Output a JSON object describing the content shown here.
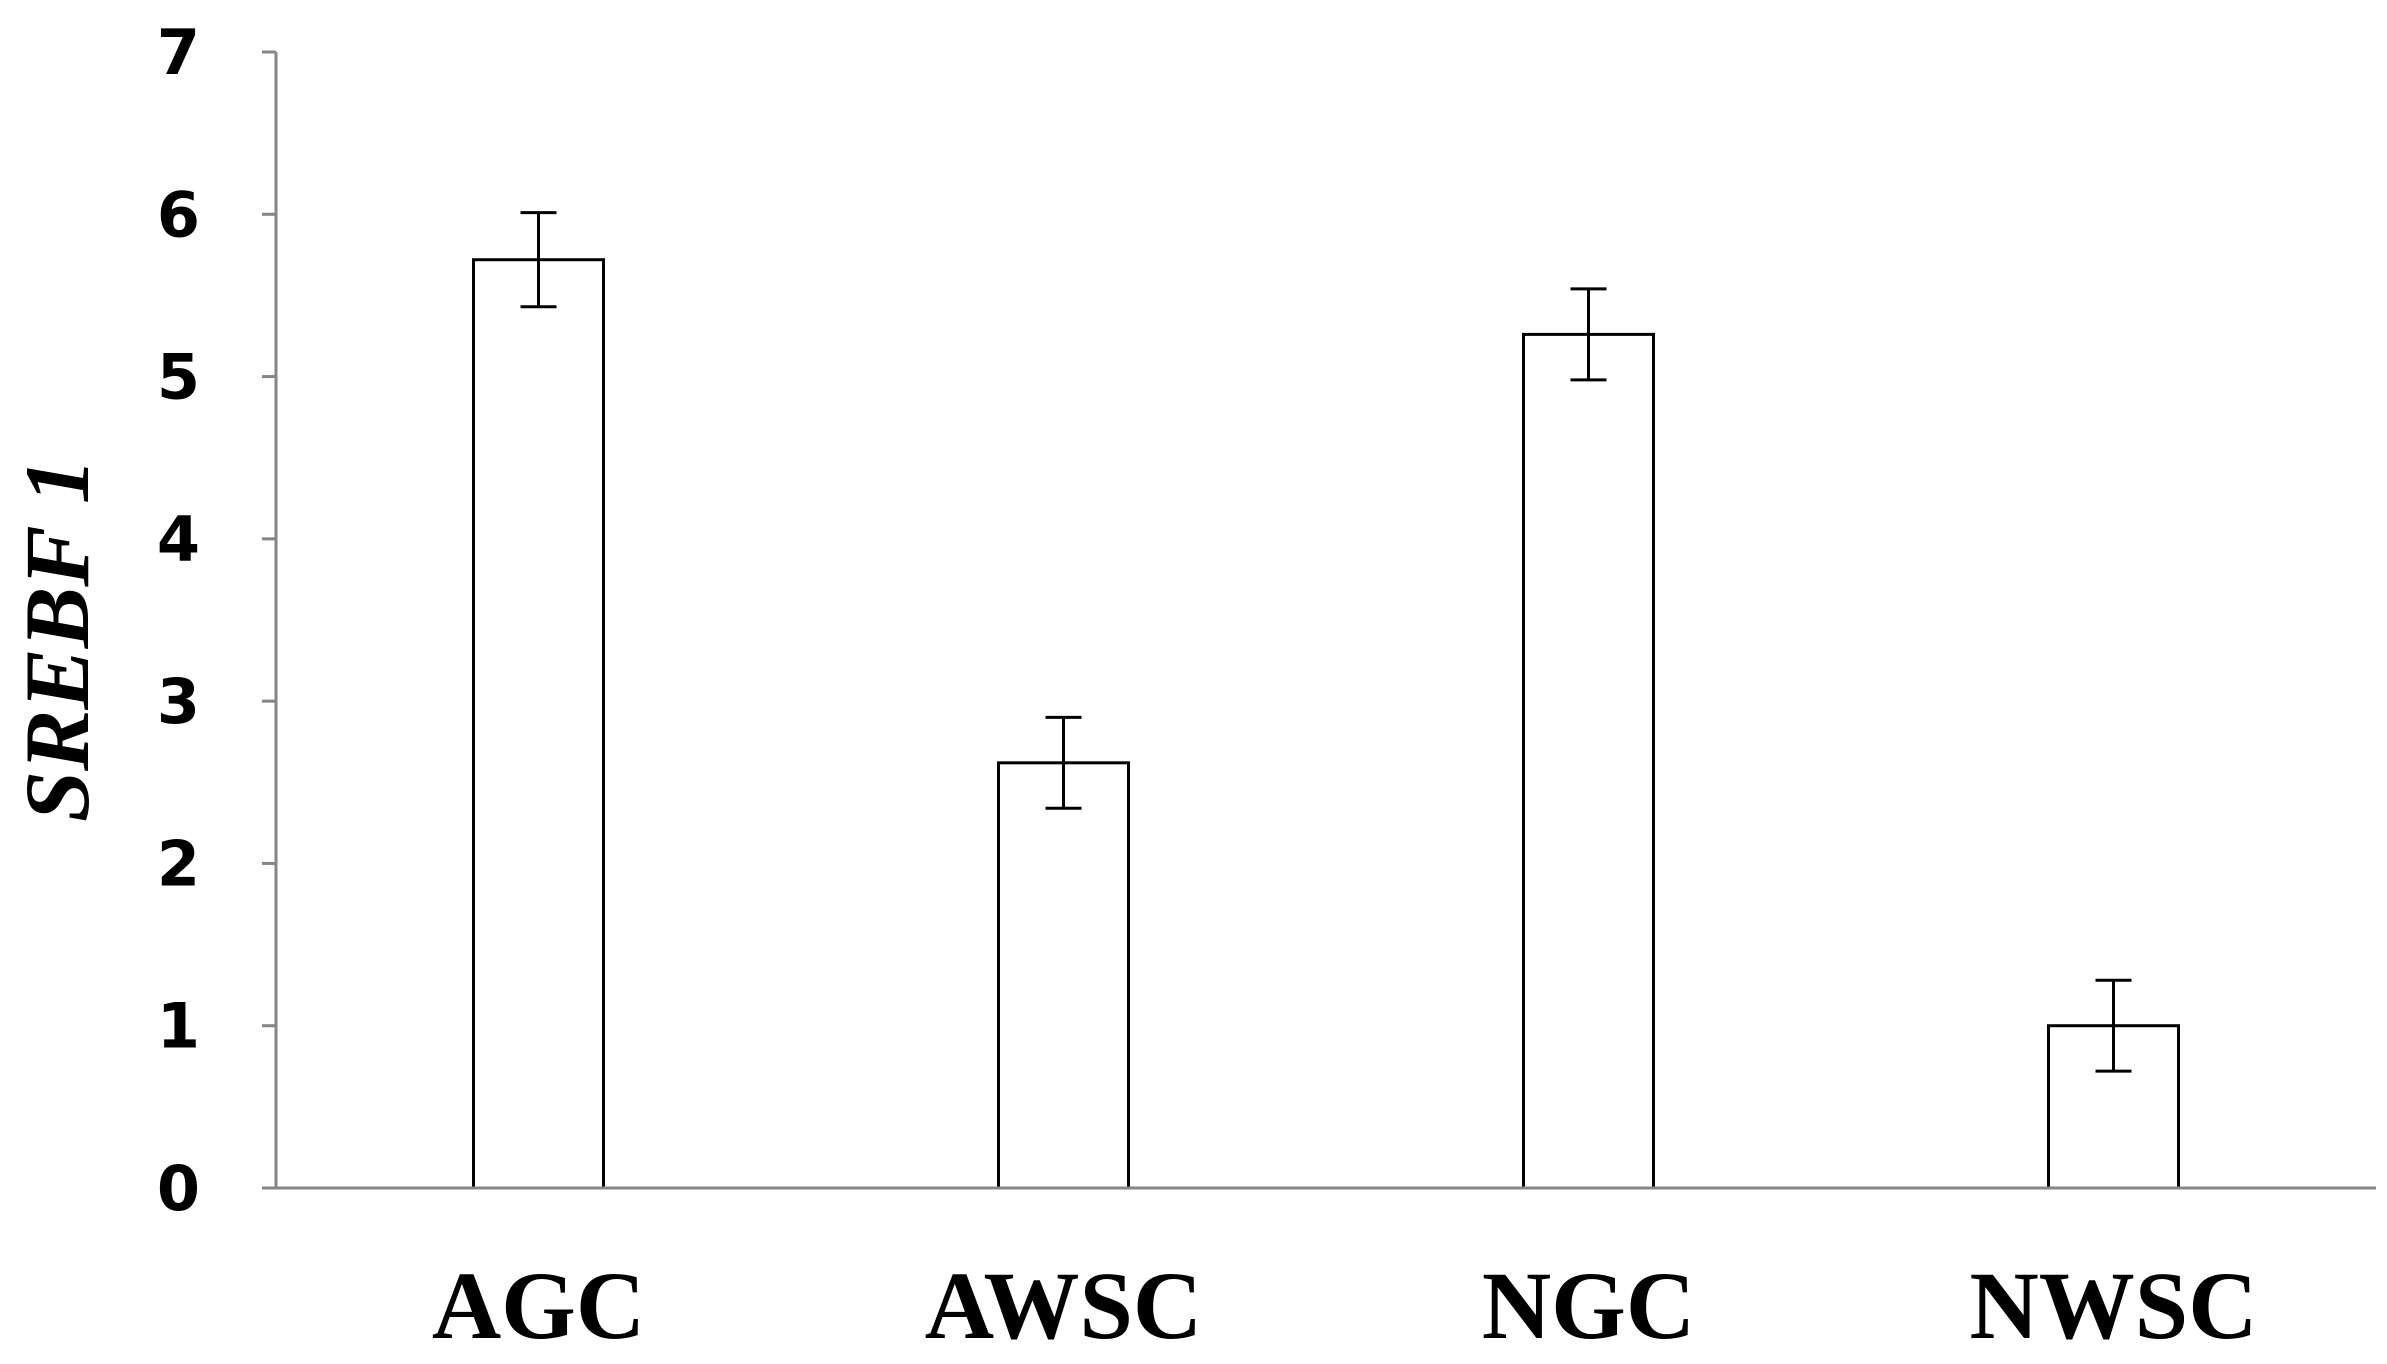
{
  "chart_data": {
    "type": "bar",
    "title": "",
    "xlabel": "",
    "ylabel": "SREBF 1",
    "categories": [
      "AGC",
      "AWSC",
      "NGC",
      "NWSC"
    ],
    "values": [
      5.72,
      2.62,
      5.26,
      1.0
    ],
    "error": [
      0.29,
      0.28,
      0.28,
      0.28
    ],
    "ylim": [
      0,
      7
    ],
    "yticks": [
      "0",
      "1",
      "2",
      "3",
      "4",
      "5",
      "6",
      "7"
    ],
    "grid": false,
    "legend": "none",
    "bar_fill": "#ffffff",
    "bar_stroke": "#000000",
    "axis_color": "#868686"
  }
}
